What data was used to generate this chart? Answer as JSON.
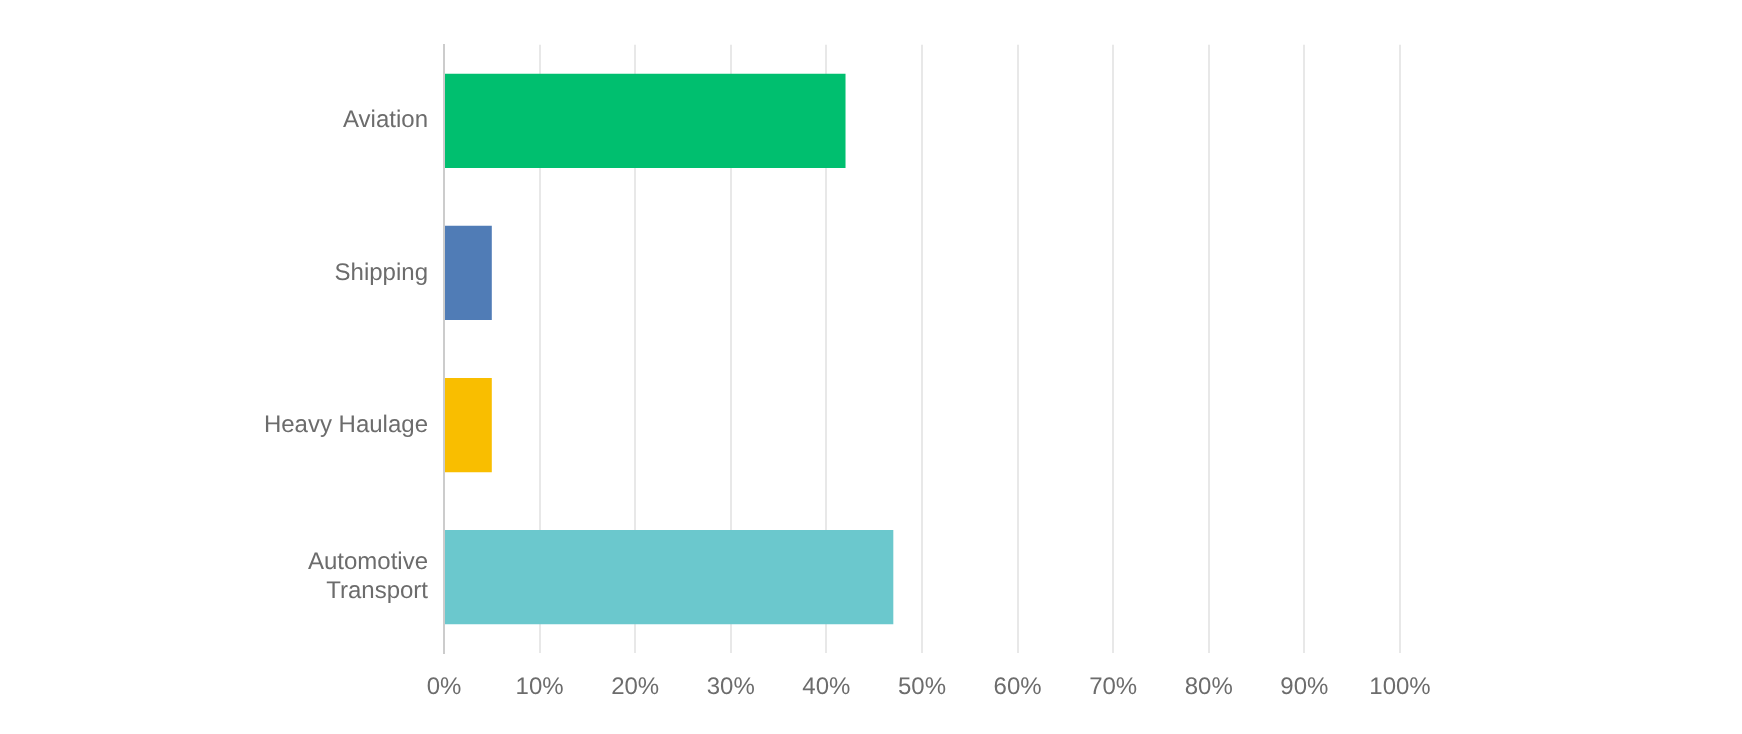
{
  "chart_data": {
    "type": "bar",
    "orientation": "horizontal",
    "categories": [
      "Aviation",
      "Shipping",
      "Heavy Haulage",
      "Automotive Transport"
    ],
    "values": [
      42,
      5,
      5,
      47
    ],
    "colors": [
      "#00bf6f",
      "#507cb6",
      "#f9be00",
      "#6bc8cd"
    ],
    "xlim": [
      0,
      100
    ],
    "xticks": [
      {
        "value": 0,
        "label": "0%"
      },
      {
        "value": 10,
        "label": "10%"
      },
      {
        "value": 20,
        "label": "20%"
      },
      {
        "value": 30,
        "label": "30%"
      },
      {
        "value": 40,
        "label": "40%"
      },
      {
        "value": 50,
        "label": "50%"
      },
      {
        "value": 60,
        "label": "60%"
      },
      {
        "value": 70,
        "label": "70%"
      },
      {
        "value": 80,
        "label": "80%"
      },
      {
        "value": 90,
        "label": "90%"
      },
      {
        "value": 100,
        "label": "100%"
      }
    ],
    "grid": "x",
    "legend": false
  }
}
